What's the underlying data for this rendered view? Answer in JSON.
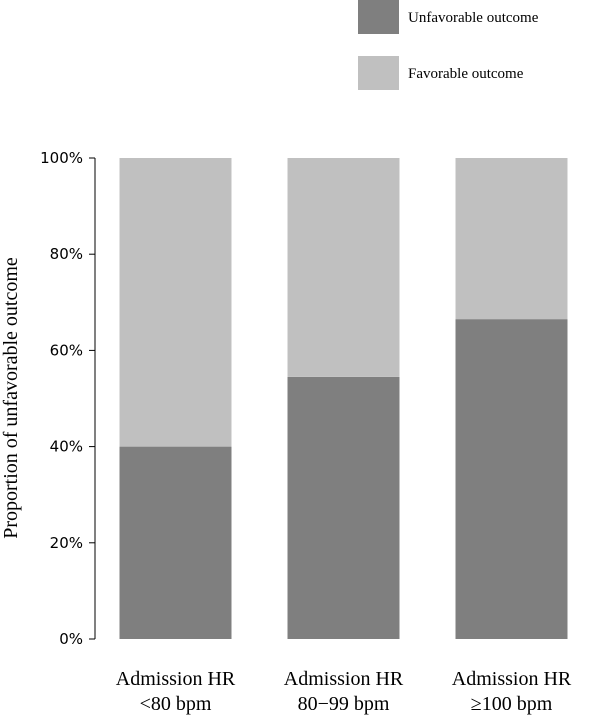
{
  "chart_data": {
    "type": "bar",
    "stacked": true,
    "categories": [
      [
        "Admission HR",
        "<80 bpm"
      ],
      [
        "Admission HR",
        "80−99 bpm"
      ],
      [
        "Admission HR",
        "≥100 bpm"
      ]
    ],
    "series": [
      {
        "name": "Unfavorable outcome",
        "color": "#7f7f7f",
        "values": [
          40,
          54.5,
          66.5
        ]
      },
      {
        "name": "Favorable outcome",
        "color": "#c0c0c0",
        "values": [
          60,
          45.5,
          33.5
        ]
      }
    ],
    "ylabel": "Proportion of unfavorable outcome",
    "ylim": [
      0,
      100
    ],
    "yticks": [
      "0%",
      "20%",
      "40%",
      "60%",
      "80%",
      "100%"
    ],
    "grid": false,
    "legend_position": "top-right"
  }
}
